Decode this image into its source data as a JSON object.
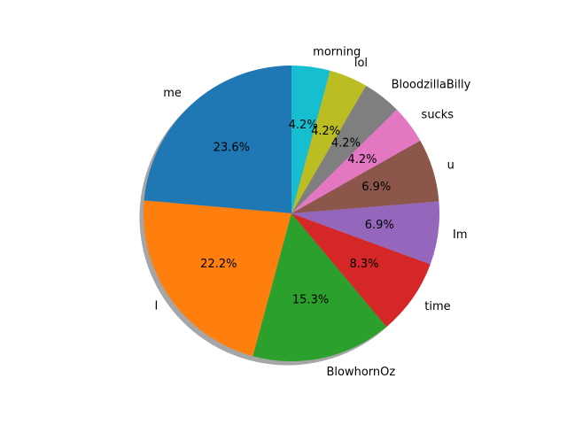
{
  "chart_data": {
    "type": "pie",
    "title": "",
    "shadow": true,
    "start_angle_deg": 90,
    "direction": "counterclockwise",
    "slices": [
      {
        "label": "me",
        "value": 23.6,
        "pct_label": "23.6%",
        "color": "#1f77b4"
      },
      {
        "label": "I",
        "value": 22.2,
        "pct_label": "22.2%",
        "color": "#ff7f0e"
      },
      {
        "label": "BlowhornOz",
        "value": 15.3,
        "pct_label": "15.3%",
        "color": "#2ca02c"
      },
      {
        "label": "time",
        "value": 8.3,
        "pct_label": "8.3%",
        "color": "#d62728"
      },
      {
        "label": "Im",
        "value": 6.9,
        "pct_label": "6.9%",
        "color": "#9467bd"
      },
      {
        "label": "u",
        "value": 6.9,
        "pct_label": "6.9%",
        "color": "#8c564b"
      },
      {
        "label": "sucks",
        "value": 4.2,
        "pct_label": "4.2%",
        "color": "#e377c2"
      },
      {
        "label": "BloodzillaBilly",
        "value": 4.2,
        "pct_label": "4.2%",
        "color": "#7f7f7f"
      },
      {
        "label": "lol",
        "value": 4.2,
        "pct_label": "4.2%",
        "color": "#bcbd22"
      },
      {
        "label": "morning",
        "value": 4.2,
        "pct_label": "4.2%",
        "color": "#17becf"
      }
    ]
  }
}
